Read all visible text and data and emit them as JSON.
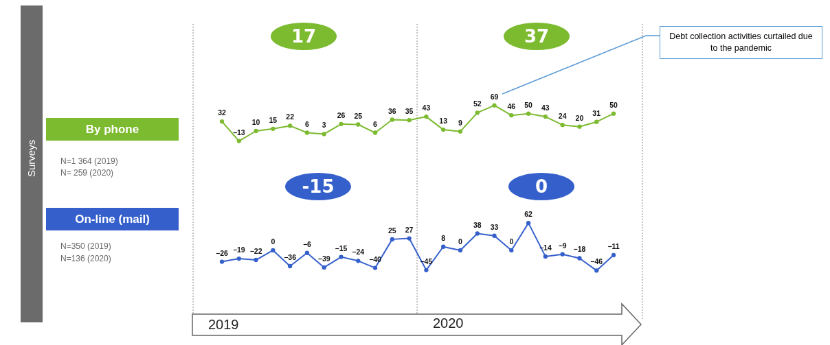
{
  "chart_data": [
    {
      "type": "line",
      "ylabel": "Surveys",
      "categories": [
        null,
        null,
        null,
        null,
        null,
        null,
        null,
        null,
        null,
        null,
        null,
        null,
        null,
        null,
        null,
        null,
        null,
        null,
        null,
        null,
        null,
        null,
        null,
        null
      ],
      "series": [
        {
          "name": "By phone",
          "color": "#7cba2f",
          "values": [
            32,
            -13,
            10,
            15,
            22,
            6,
            3,
            26,
            25,
            6,
            36,
            35,
            43,
            13,
            9,
            52,
            69,
            46,
            50,
            43,
            24,
            20,
            31,
            50
          ]
        }
      ],
      "data_labels": true,
      "marker": "circle",
      "legend": "left",
      "annotations": [
        "17",
        "37",
        "N=1 364 (2019)",
        "N= 259 (2020)",
        "Debt collection activities curtailed due to the pandemic"
      ]
    },
    {
      "type": "line",
      "categories": [
        null,
        null,
        null,
        null,
        null,
        null,
        null,
        null,
        null,
        null,
        null,
        null,
        null,
        null,
        null,
        null,
        null,
        null,
        null,
        null,
        null,
        null,
        null,
        null
      ],
      "series": [
        {
          "name": "On-line (mail)",
          "color": "#3560cc",
          "values": [
            -26,
            -19,
            -22,
            0,
            -36,
            -6,
            -39,
            -15,
            -24,
            -40,
            25,
            27,
            -45,
            8,
            0,
            38,
            33,
            0,
            62,
            -14,
            -9,
            -18,
            -46,
            -11
          ]
        }
      ],
      "data_labels": true,
      "marker": "circle",
      "legend": "left",
      "annotations": [
        "-15",
        "0",
        "N=350 (2019)",
        "N=136 (2020)",
        "2019",
        "2020"
      ]
    }
  ]
}
